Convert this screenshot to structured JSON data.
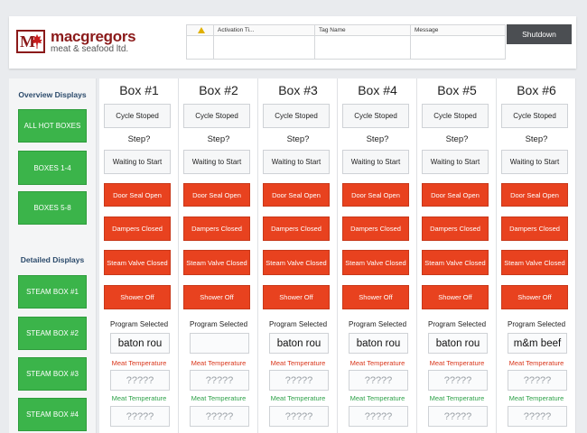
{
  "header": {
    "logo": {
      "mark": "M",
      "line1": "macgregors",
      "line2": "meat & seafood ltd."
    },
    "alarm_table": {
      "columns": [
        "",
        "Activation Ti...",
        "Tag Name",
        "Message"
      ]
    },
    "shutdown_label": "Shutdown"
  },
  "sidebar": {
    "overview_title": "Overview Displays",
    "overview_buttons": [
      "ALL HOT BOXES",
      "BOXES 1-4",
      "BOXES 5-8"
    ],
    "detailed_title": "Detailed Displays",
    "detailed_buttons": [
      "STEAM BOX #1",
      "STEAM BOX #2",
      "STEAM BOX #3",
      "STEAM BOX #4"
    ]
  },
  "colors": {
    "green": "#3bb44a",
    "red": "#e8421f",
    "meat_temp": "#d9361b",
    "steam_temp": "#2fa24a",
    "brand": "#8b1a1a"
  },
  "boxes": [
    {
      "title": "Box #1",
      "cycle": "Cycle Stoped",
      "step_label": "Step?",
      "status": "Waiting to Start",
      "door": "Door Seal Open",
      "dampers": "Dampers Closed",
      "steam_valve": "Steam Valve Closed",
      "shower": "Shower Off",
      "program_label": "Program Selected",
      "program": "baton rou",
      "meat_label": "Meat Temperature",
      "meat_value": "?????",
      "steam_label": "Meat Temperature",
      "steam_value": "?????"
    },
    {
      "title": "Box #2",
      "cycle": "Cycle Stoped",
      "step_label": "Step?",
      "status": "Waiting to Start",
      "door": "Door Seal Open",
      "dampers": "Dampers Closed",
      "steam_valve": "Steam Valve Closed",
      "shower": "Shower Off",
      "program_label": "Program Selected",
      "program": "",
      "meat_label": "Meat Temperature",
      "meat_value": "?????",
      "steam_label": "Meat Temperature",
      "steam_value": "?????"
    },
    {
      "title": "Box #3",
      "cycle": "Cycle Stoped",
      "step_label": "Step?",
      "status": "Waiting to Start",
      "door": "Door Seal Open",
      "dampers": "Dampers Closed",
      "steam_valve": "Steam Valve Closed",
      "shower": "Shower Off",
      "program_label": "Program Selected",
      "program": "baton rou",
      "meat_label": "Meat Temperature",
      "meat_value": "?????",
      "steam_label": "Meat Temperature",
      "steam_value": "?????"
    },
    {
      "title": "Box #4",
      "cycle": "Cycle Stoped",
      "step_label": "Step?",
      "status": "Waiting to Start",
      "door": "Door Seal Open",
      "dampers": "Dampers Closed",
      "steam_valve": "Steam Valve Closed",
      "shower": "Shower Off",
      "program_label": "Program Selected",
      "program": "baton rou",
      "meat_label": "Meat Temperature",
      "meat_value": "?????",
      "steam_label": "Meat Temperature",
      "steam_value": "?????"
    },
    {
      "title": "Box #5",
      "cycle": "Cycle Stoped",
      "step_label": "Step?",
      "status": "Waiting to Start",
      "door": "Door Seal Open",
      "dampers": "Dampers Closed",
      "steam_valve": "Steam Valve Closed",
      "shower": "Shower Off",
      "program_label": "Program Selected",
      "program": "baton rou",
      "meat_label": "Meat Temperature",
      "meat_value": "?????",
      "steam_label": "Meat Temperature",
      "steam_value": "?????"
    },
    {
      "title": "Box #6",
      "cycle": "Cycle Stoped",
      "step_label": "Step?",
      "status": "Waiting to Start",
      "door": "Door Seal Open",
      "dampers": "Dampers Closed",
      "steam_valve": "Steam Valve Closed",
      "shower": "Shower Off",
      "program_label": "Program Selected",
      "program": "m&m beef",
      "meat_label": "Meat Temperature",
      "meat_value": "?????",
      "steam_label": "Meat Temperature",
      "steam_value": "?????"
    }
  ]
}
